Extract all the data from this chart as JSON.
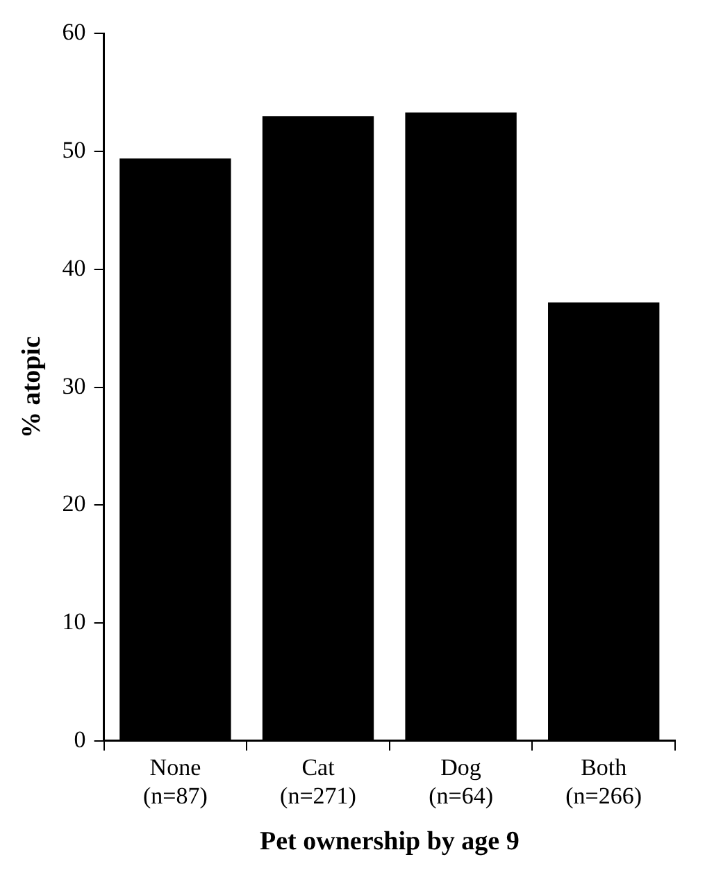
{
  "chart_data": {
    "type": "bar",
    "xlabel": "Pet ownership by age 9",
    "ylabel": "% atopic",
    "categories": [
      "None\n(n=87)",
      "Cat\n(n=271)",
      "Dog\n(n=64)",
      "Both\n(n=266)"
    ],
    "values": [
      49.4,
      53.0,
      53.3,
      37.2
    ],
    "color": "#000000",
    "ylim": [
      0,
      60
    ],
    "yticks": [
      0,
      10,
      20,
      30,
      40,
      50,
      60
    ],
    "grid": false,
    "legend": false
  }
}
